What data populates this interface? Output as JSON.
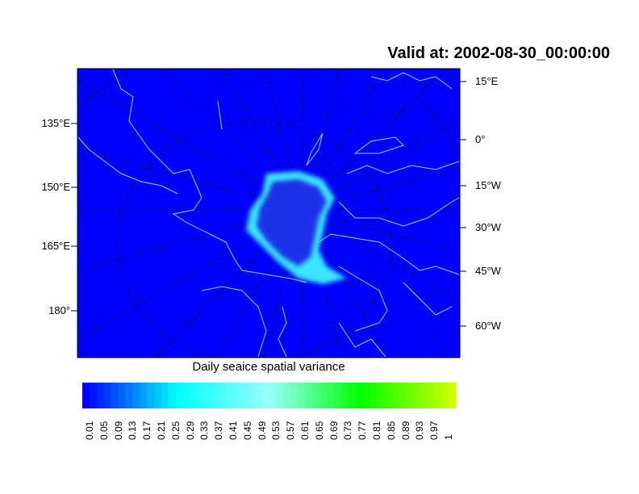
{
  "title": "Valid at: 2002-08-30_00:00:00",
  "map": {
    "left_lon_labels": [
      "135°E",
      "150°E",
      "165°E",
      "180°"
    ],
    "right_lon_labels": [
      "15°E",
      "0°",
      "15°W",
      "30°W",
      "45°W",
      "60°W"
    ],
    "ocean_color": "#0000ff",
    "coastline_color": "#8fd8ff",
    "ice_edge_color": "#40ffff",
    "graticule": "dotted"
  },
  "colorbar": {
    "title": "Daily seaice spatial variance",
    "labels": [
      "0.01",
      "0.05",
      "0.09",
      "0.13",
      "0.17",
      "0.21",
      "0.25",
      "0.29",
      "0.33",
      "0.37",
      "0.41",
      "0.45",
      "0.49",
      "0.53",
      "0.57",
      "0.61",
      "0.65",
      "0.69",
      "0.73",
      "0.77",
      "0.81",
      "0.85",
      "0.89",
      "0.93",
      "0.97",
      "1"
    ],
    "color_stops": [
      [
        "0",
        "#0000ff"
      ],
      [
        "0.2",
        "#00ccff"
      ],
      [
        "0.25",
        "#00ffff"
      ],
      [
        "0.5",
        "#99ffff"
      ],
      [
        "0.75",
        "#00ff00"
      ],
      [
        "1",
        "#ccff00"
      ]
    ]
  }
}
